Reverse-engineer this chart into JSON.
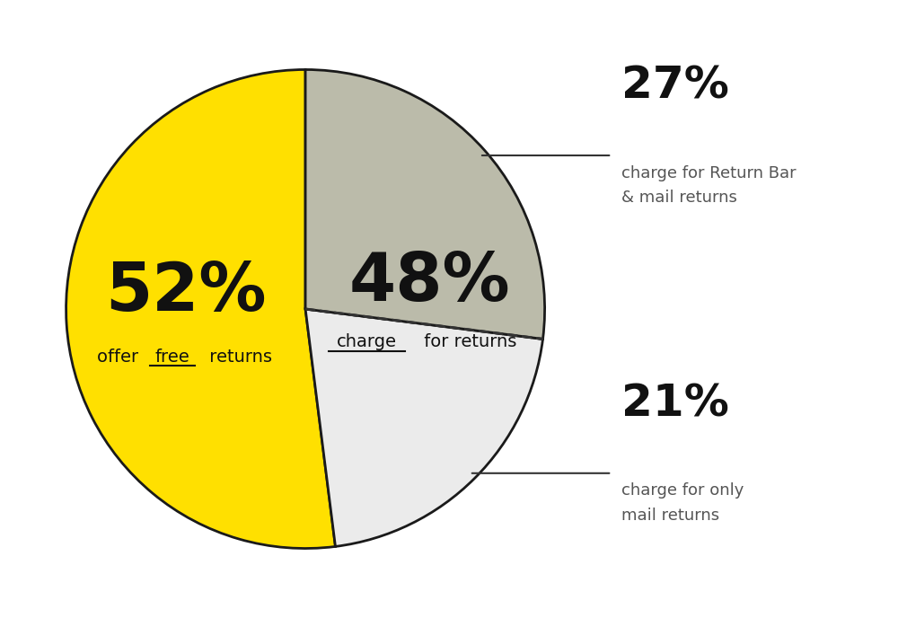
{
  "values": [
    52,
    21,
    27
  ],
  "colors": [
    "#FFE000",
    "#EBEBEB",
    "#BBBBAA"
  ],
  "background_color": "#FFFFFF",
  "edge_color": "#1a1a1a",
  "edge_linewidth": 2.0,
  "pct_large_fontsize": 54,
  "pct_sub_fontsize": 14,
  "annot_large_fontsize": 36,
  "annot_sub_fontsize": 13,
  "free_pct": "52%",
  "charge_pct": "48%",
  "mail_pct": "21%",
  "both_pct": "27%",
  "mail_sub": "charge for only\nmail returns",
  "both_sub": "charge for Return Bar\n& mail returns",
  "annot_line_color": "#333333",
  "dashed_line_color": "#333333",
  "text_color_dark": "#111111",
  "text_color_gray": "#555555"
}
